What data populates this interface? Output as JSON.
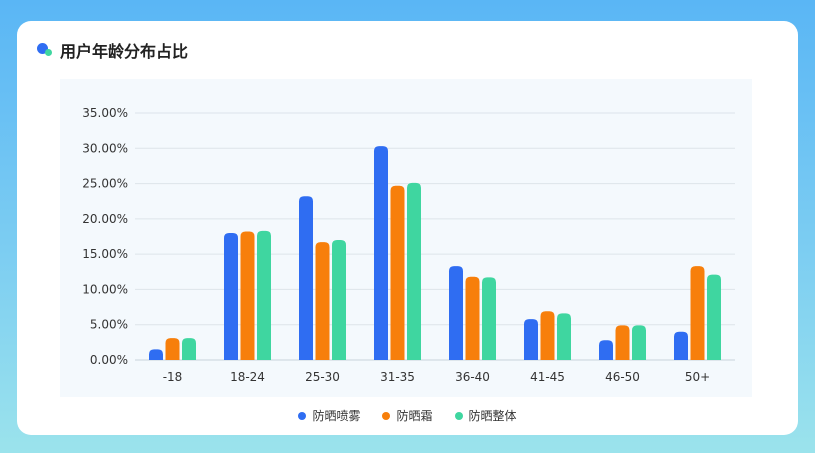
{
  "title": "用户年龄分布占比",
  "colors": {
    "series1": "#2f6df2",
    "series2": "#f77f0b",
    "series3": "#3fd6a0"
  },
  "chart_data": {
    "type": "bar",
    "title": "用户年龄分布占比",
    "categories": [
      "-18",
      "18-24",
      "25-30",
      "31-35",
      "36-40",
      "41-45",
      "46-50",
      "50+"
    ],
    "series": [
      {
        "name": "防晒喷雾",
        "values": [
          1.5,
          18.0,
          23.2,
          30.3,
          13.3,
          5.8,
          2.8,
          4.0
        ]
      },
      {
        "name": "防晒霜",
        "values": [
          3.1,
          18.2,
          16.7,
          24.7,
          11.8,
          6.9,
          4.9,
          13.3
        ]
      },
      {
        "name": "防晒整体",
        "values": [
          3.1,
          18.3,
          17.0,
          25.1,
          11.7,
          6.6,
          4.9,
          12.1
        ]
      }
    ],
    "y_ticks": [
      "0.00%",
      "5.00%",
      "10.00%",
      "15.00%",
      "20.00%",
      "25.00%",
      "30.00%",
      "35.00%"
    ],
    "ylim": [
      0,
      35
    ],
    "grid": true,
    "legend_position": "bottom"
  }
}
